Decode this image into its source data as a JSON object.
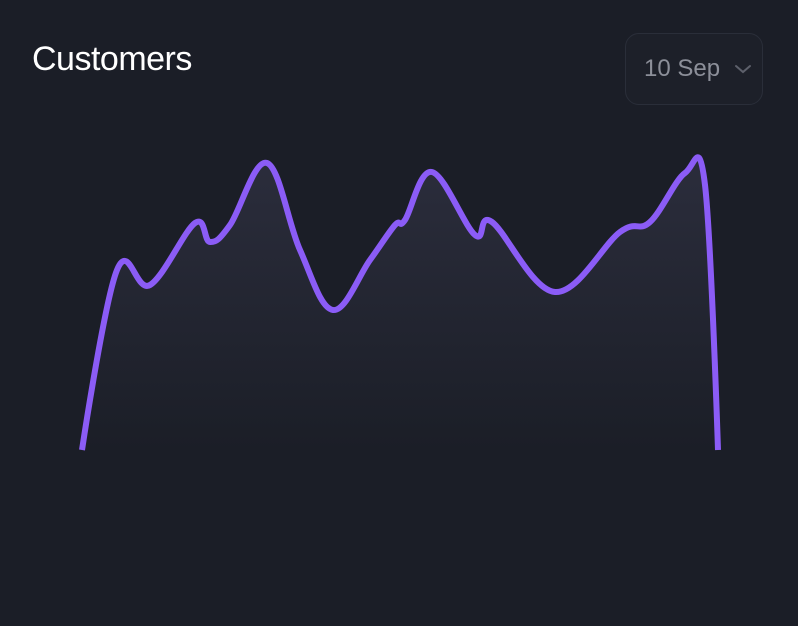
{
  "dropdown": {
    "label": "10 Sep"
  },
  "chart_data": {
    "type": "area",
    "title": "Customers",
    "x": [
      0,
      35,
      68,
      113,
      128,
      148,
      185,
      218,
      251,
      288,
      313,
      323,
      350,
      393,
      410,
      473,
      538,
      568,
      603,
      623,
      636
    ],
    "series": [
      {
        "name": "Customers",
        "color": "#8b5cf6",
        "values": [
          0,
          180,
          165,
          227,
          208,
          225,
          287,
          200,
          140,
          190,
          225,
          230,
          278,
          215,
          228,
          158,
          218,
          228,
          277,
          265,
          0
        ]
      }
    ],
    "xlim": [
      0,
      636
    ],
    "ylim": [
      0,
      300
    ]
  }
}
